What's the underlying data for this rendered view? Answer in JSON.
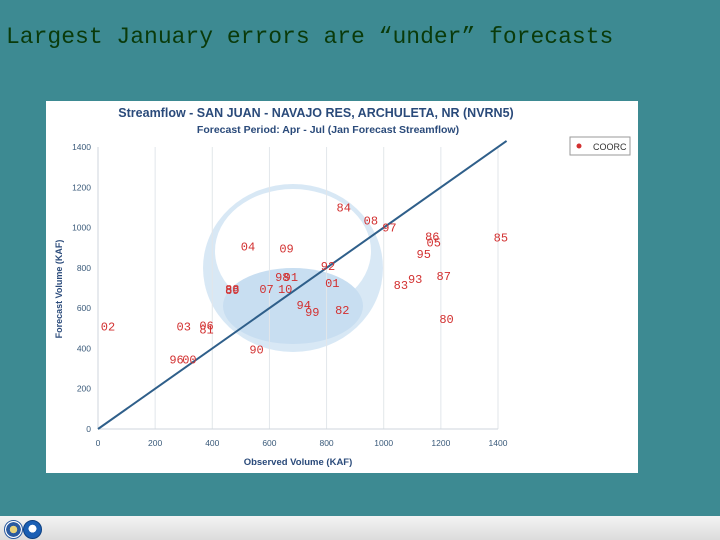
{
  "slide": {
    "title": "Largest January errors are “under” forecasts"
  },
  "colors": {
    "background": "#3d8a92",
    "title_text": "#0a3a0a",
    "chart_title": "#2a4a7a",
    "point_label": "#d23030",
    "diagonal_line": "#2f5f8a"
  },
  "icons": [
    "doc-seal-logo-icon",
    "noaa-logo-icon"
  ],
  "chart_data": {
    "type": "scatter",
    "title": "Streamflow - SAN JUAN - NAVAJO RES, ARCHULETA, NR (NVRN5)",
    "subtitle": "Forecast Period: Apr - Jul (Jan Forecast Streamflow)",
    "xlabel": "Observed Volume (KAF)",
    "ylabel": "Forecast Volume (KAF)",
    "xlim": [
      0,
      1400
    ],
    "ylim": [
      0,
      1400
    ],
    "x_ticks": [
      "0",
      "200",
      "400",
      "600",
      "800",
      "1000",
      "1200",
      "1400"
    ],
    "y_ticks": [
      "0",
      "200",
      "400",
      "600",
      "800",
      "1000",
      "1200",
      "1400"
    ],
    "grid": "vertical",
    "legend": {
      "position": "top-right",
      "entries": [
        {
          "name": "COORC",
          "color": "#d23030"
        }
      ]
    },
    "reference_line": {
      "from": [
        0,
        0
      ],
      "to": [
        1430,
        1430
      ]
    },
    "series": [
      {
        "name": "COORC",
        "points": [
          {
            "label": "84",
            "x": 860,
            "y": 1100
          },
          {
            "label": "08",
            "x": 955,
            "y": 1035
          },
          {
            "label": "97",
            "x": 1020,
            "y": 1000
          },
          {
            "label": "85",
            "x": 1410,
            "y": 950
          },
          {
            "label": "04",
            "x": 525,
            "y": 905
          },
          {
            "label": "09",
            "x": 660,
            "y": 895
          },
          {
            "label": "86",
            "x": 1170,
            "y": 955
          },
          {
            "label": "05",
            "x": 1175,
            "y": 925
          },
          {
            "label": "95",
            "x": 1140,
            "y": 870
          },
          {
            "label": "92",
            "x": 805,
            "y": 810
          },
          {
            "label": "87",
            "x": 1210,
            "y": 760
          },
          {
            "label": "98",
            "x": 645,
            "y": 755
          },
          {
            "label": "91",
            "x": 675,
            "y": 755
          },
          {
            "label": "93",
            "x": 1110,
            "y": 745
          },
          {
            "label": "01",
            "x": 820,
            "y": 725
          },
          {
            "label": "83",
            "x": 1060,
            "y": 715
          },
          {
            "label": "89",
            "x": 470,
            "y": 690
          },
          {
            "label": "88",
            "x": 470,
            "y": 695
          },
          {
            "label": "07",
            "x": 590,
            "y": 695
          },
          {
            "label": "10",
            "x": 655,
            "y": 695
          },
          {
            "label": "94",
            "x": 720,
            "y": 615
          },
          {
            "label": "99",
            "x": 750,
            "y": 580
          },
          {
            "label": "82",
            "x": 855,
            "y": 590
          },
          {
            "label": "80",
            "x": 1220,
            "y": 545
          },
          {
            "label": "02",
            "x": 35,
            "y": 510
          },
          {
            "label": "03",
            "x": 300,
            "y": 510
          },
          {
            "label": "06",
            "x": 380,
            "y": 515
          },
          {
            "label": "81",
            "x": 380,
            "y": 495
          },
          {
            "label": "90",
            "x": 555,
            "y": 395
          },
          {
            "label": "96",
            "x": 275,
            "y": 345
          },
          {
            "label": "00",
            "x": 320,
            "y": 345
          }
        ]
      }
    ]
  }
}
